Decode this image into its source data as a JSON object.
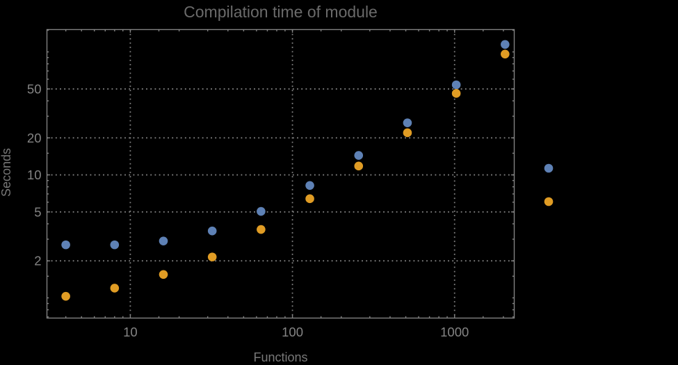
{
  "chart_data": {
    "type": "scatter",
    "title": "Compilation time of module",
    "xlabel": "Functions",
    "ylabel": "Seconds",
    "x_scale": "log",
    "y_scale": "log",
    "grid": "major-only-dotted",
    "legend_position": "right-outside-markers-only",
    "x": [
      4,
      8,
      16,
      32,
      64,
      128,
      256,
      512,
      1024,
      2048
    ],
    "series": [
      {
        "name": "series-1-blue",
        "color": "#5E81B5",
        "values": [
          2.7,
          2.7,
          2.9,
          3.5,
          5.05,
          8.2,
          14.4,
          26.5,
          54,
          115
        ]
      },
      {
        "name": "series-2-orange",
        "color": "#E09C24",
        "values": [
          1.03,
          1.2,
          1.55,
          2.15,
          3.6,
          6.4,
          11.8,
          22,
          46,
          96
        ]
      }
    ],
    "xlim": [
      3.06,
      2333
    ],
    "ylim": [
      0.685,
      152
    ],
    "x_ticks": {
      "major": [
        10,
        100,
        1000
      ],
      "major_labels": [
        "10",
        "100",
        "1000"
      ],
      "minor": [
        4,
        5,
        6,
        7,
        8,
        9,
        15,
        20,
        30,
        40,
        50,
        60,
        70,
        80,
        90,
        150,
        200,
        300,
        400,
        500,
        600,
        700,
        800,
        900,
        1500,
        2000
      ]
    },
    "y_ticks": {
      "major": [
        2,
        5,
        10,
        20,
        50
      ],
      "major_labels": [
        "2",
        "5",
        "10",
        "20",
        "50"
      ],
      "minor": [
        0.7,
        0.8,
        0.9,
        1,
        1.5,
        3,
        4,
        6,
        7,
        8,
        9,
        15,
        30,
        40,
        60,
        70,
        80,
        90,
        100,
        150
      ]
    },
    "legend_markers": [
      "#5E81B5",
      "#E09C24"
    ],
    "colors": {
      "background": "#000000",
      "frame": "#828282",
      "grid": "#828282",
      "tick_label": "#848484",
      "axis_label": "#787878",
      "title": "#6a6a6a",
      "series_blue": "#5E81B5",
      "series_orange": "#E09C24"
    }
  }
}
